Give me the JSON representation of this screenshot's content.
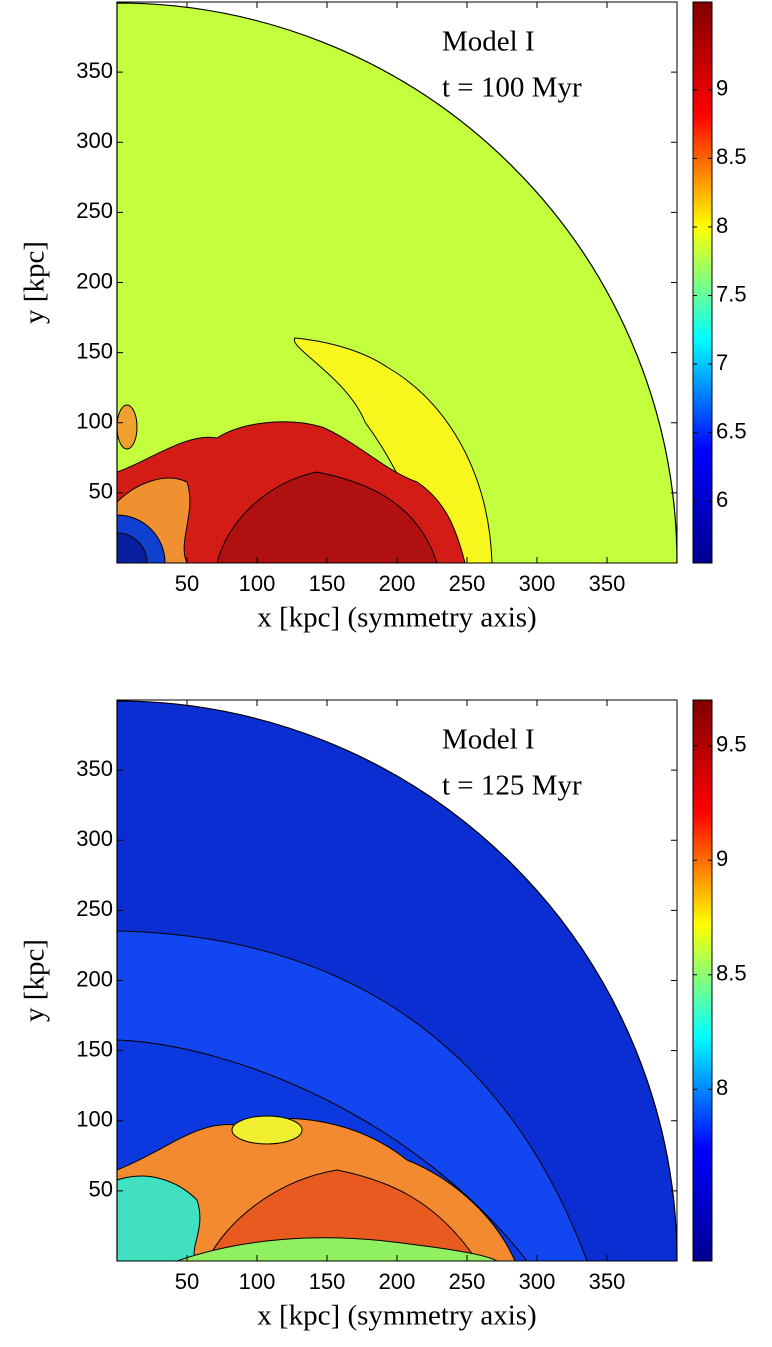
{
  "chart_data": [
    {
      "type": "contour",
      "annotations": [
        "Model I",
        "t = 100 Myr"
      ],
      "xlabel": "x [kpc] (symmetry axis)",
      "ylabel": "y [kpc]",
      "xlim": [
        0,
        400
      ],
      "ylim": [
        0,
        400
      ],
      "xticks": [
        50,
        100,
        150,
        200,
        250,
        300,
        350
      ],
      "yticks": [
        50,
        100,
        150,
        200,
        250,
        300,
        350
      ],
      "colorbar": {
        "clim": [
          5.55,
          9.64
        ],
        "ticks": [
          6,
          6.5,
          7,
          7.5,
          8,
          8.5,
          9
        ],
        "colormap": "jet"
      }
    },
    {
      "type": "contour",
      "annotations": [
        "Model I",
        "t = 125 Myr"
      ],
      "xlabel": "x [kpc] (symmetry axis)",
      "ylabel": "y [kpc]",
      "xlim": [
        0,
        400
      ],
      "ylim": [
        0,
        400
      ],
      "xticks": [
        50,
        100,
        150,
        200,
        250,
        300,
        350
      ],
      "yticks": [
        50,
        100,
        150,
        200,
        250,
        300,
        350
      ],
      "colorbar": {
        "clim": [
          7.25,
          9.7
        ],
        "ticks": [
          8,
          8.5,
          9,
          9.5
        ],
        "colormap": "jet"
      }
    }
  ]
}
